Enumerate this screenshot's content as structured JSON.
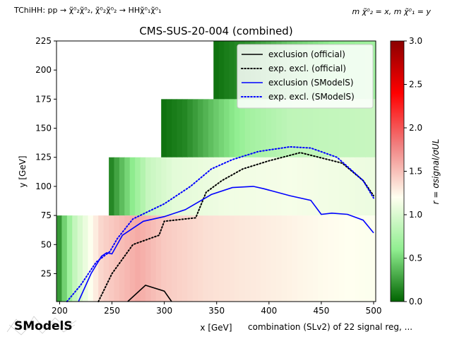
{
  "header": {
    "topology": "TChiHH: pp → χ̃⁰₂χ̃⁰₂, χ̃⁰₂χ̃⁰₂ → HHχ̃⁰₁χ̃⁰₁",
    "mass_note": "m χ̃⁰₂ = x, m χ̃⁰₁ = y"
  },
  "footer": {
    "combination": "combination (SLv2) of 22 signal reg, ...",
    "logo_text": "SModelS"
  },
  "chart_data": {
    "type": "heatmap",
    "title": "CMS-SUS-20-004 (combined)",
    "xlabel": "x [GeV]",
    "ylabel": "y [GeV]",
    "colorbar_label": "r = σsignal/σUL",
    "xlim": [
      197,
      502
    ],
    "ylim": [
      1,
      225
    ],
    "clim": [
      0,
      3
    ],
    "x_ticks": [
      200,
      250,
      300,
      350,
      400,
      450,
      500
    ],
    "y_ticks": [
      25,
      50,
      75,
      100,
      125,
      150,
      175,
      200,
      225
    ],
    "c_ticks": [
      0.0,
      0.5,
      1.0,
      1.5,
      2.0,
      2.5,
      3.0
    ],
    "colormap": [
      "#006400",
      "#90ee90",
      "#fffff0",
      "#f08080",
      "#ff0000",
      "#8b0000"
    ],
    "legend_position": "top-right",
    "heatmap_bands": [
      {
        "y_range": [
          1,
          75
        ],
        "x_range": [
          197,
          502
        ],
        "r_profile": [
          [
            197,
            0.1
          ],
          [
            205,
            0.5
          ],
          [
            215,
            0.9
          ],
          [
            240,
            1.4
          ],
          [
            275,
            1.6
          ],
          [
            300,
            1.45
          ],
          [
            340,
            1.35
          ],
          [
            400,
            1.28
          ],
          [
            450,
            1.22
          ],
          [
            502,
            1.18
          ]
        ]
      },
      {
        "y_range": [
          75,
          125
        ],
        "x_range": [
          247,
          502
        ],
        "r_profile": [
          [
            247,
            0.1
          ],
          [
            260,
            0.4
          ],
          [
            285,
            0.9
          ],
          [
            310,
            1.05
          ],
          [
            360,
            1.12
          ],
          [
            420,
            1.15
          ],
          [
            502,
            1.1
          ]
        ]
      },
      {
        "y_range": [
          125,
          175
        ],
        "x_range": [
          297,
          502
        ],
        "r_profile": [
          [
            297,
            0.05
          ],
          [
            320,
            0.15
          ],
          [
            350,
            0.45
          ],
          [
            380,
            0.7
          ],
          [
            420,
            0.85
          ],
          [
            502,
            0.9
          ]
        ]
      },
      {
        "y_range": [
          175,
          225
        ],
        "x_range": [
          347,
          502
        ],
        "r_profile": [
          [
            347,
            0.05
          ],
          [
            380,
            0.2
          ],
          [
            420,
            0.45
          ],
          [
            460,
            0.6
          ],
          [
            502,
            0.7
          ]
        ]
      }
    ],
    "series": [
      {
        "name": "exclusion (official)",
        "color": "#000000",
        "style": "solid",
        "x": [
          265,
          282,
          300,
          307
        ],
        "y": [
          1,
          15,
          10,
          1
        ]
      },
      {
        "name": "exp. excl. (official)",
        "color": "#000000",
        "style": "dotted",
        "x": [
          237,
          250,
          270,
          295,
          300,
          330,
          340,
          355,
          375,
          400,
          430,
          470,
          490,
          500
        ],
        "y": [
          1,
          25,
          50,
          58,
          70,
          73,
          95,
          105,
          115,
          122,
          129,
          120,
          105,
          92
        ]
      },
      {
        "name": "exclusion (SModelS)",
        "color": "#0000ff",
        "style": "solid",
        "x": [
          218,
          230,
          240,
          245,
          250,
          260,
          280,
          300,
          320,
          345,
          365,
          385,
          395,
          420,
          440,
          450,
          460,
          475,
          490,
          500
        ],
        "y": [
          1,
          25,
          40,
          43,
          42,
          58,
          70,
          74,
          80,
          93,
          99,
          100,
          98,
          92,
          88,
          76,
          77,
          76,
          71,
          60
        ]
      },
      {
        "name": "exp. excl. (SModelS)",
        "color": "#0000ff",
        "style": "dotted",
        "x": [
          207,
          220,
          235,
          248,
          255,
          270,
          300,
          325,
          345,
          365,
          390,
          420,
          440,
          465,
          490,
          500
        ],
        "y": [
          1,
          15,
          35,
          44,
          55,
          72,
          85,
          100,
          115,
          123,
          130,
          134,
          133,
          125,
          105,
          90
        ]
      }
    ]
  }
}
